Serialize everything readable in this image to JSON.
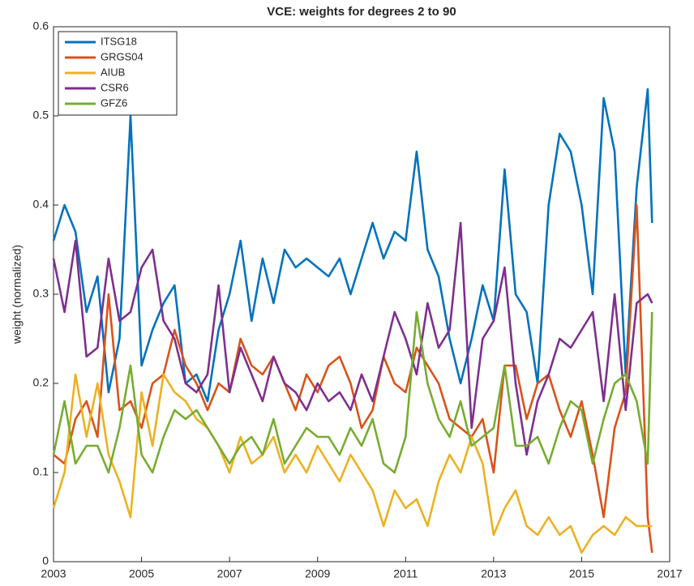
{
  "chart_data": {
    "type": "line",
    "title": "VCE: weights for degrees 2 to 90",
    "y_label": "weight (normalized)",
    "x": [
      2003,
      2003.25,
      2003.5,
      2003.75,
      2004,
      2004.25,
      2004.5,
      2004.75,
      2005,
      2005.25,
      2005.5,
      2005.75,
      2006,
      2006.25,
      2006.5,
      2006.75,
      2007,
      2007.25,
      2007.5,
      2007.75,
      2008,
      2008.25,
      2008.5,
      2008.75,
      2009,
      2009.25,
      2009.5,
      2009.75,
      2010,
      2010.25,
      2010.5,
      2010.75,
      2011,
      2011.25,
      2011.5,
      2011.75,
      2012,
      2012.25,
      2012.5,
      2012.75,
      2013,
      2013.25,
      2013.5,
      2013.75,
      2014,
      2014.25,
      2014.5,
      2014.75,
      2015,
      2015.25,
      2015.5,
      2015.75,
      2016,
      2016.25,
      2016.5,
      2016.6
    ],
    "series": [
      {
        "name": "ITSG18",
        "color": "#0072BD",
        "values": [
          0.36,
          0.4,
          0.37,
          0.28,
          0.32,
          0.19,
          0.25,
          0.5,
          0.22,
          0.26,
          0.29,
          0.31,
          0.2,
          0.21,
          0.18,
          0.26,
          0.3,
          0.36,
          0.27,
          0.34,
          0.29,
          0.35,
          0.33,
          0.34,
          0.33,
          0.32,
          0.34,
          0.3,
          0.34,
          0.38,
          0.34,
          0.37,
          0.36,
          0.46,
          0.35,
          0.32,
          0.25,
          0.2,
          0.25,
          0.31,
          0.27,
          0.44,
          0.3,
          0.28,
          0.2,
          0.4,
          0.48,
          0.46,
          0.4,
          0.3,
          0.52,
          0.46,
          0.21,
          0.42,
          0.53,
          0.38
        ]
      },
      {
        "name": "GRGS04",
        "color": "#D95319",
        "values": [
          0.12,
          0.11,
          0.16,
          0.18,
          0.14,
          0.3,
          0.17,
          0.18,
          0.15,
          0.2,
          0.21,
          0.26,
          0.22,
          0.2,
          0.17,
          0.2,
          0.19,
          0.25,
          0.22,
          0.21,
          0.23,
          0.2,
          0.17,
          0.21,
          0.19,
          0.22,
          0.23,
          0.2,
          0.15,
          0.17,
          0.23,
          0.2,
          0.19,
          0.24,
          0.22,
          0.2,
          0.16,
          0.15,
          0.14,
          0.16,
          0.1,
          0.22,
          0.22,
          0.16,
          0.2,
          0.21,
          0.17,
          0.14,
          0.18,
          0.12,
          0.05,
          0.15,
          0.19,
          0.4,
          0.05,
          0.01
        ]
      },
      {
        "name": "AIUB",
        "color": "#EDB120",
        "values": [
          0.06,
          0.1,
          0.21,
          0.14,
          0.2,
          0.12,
          0.09,
          0.05,
          0.19,
          0.13,
          0.21,
          0.19,
          0.18,
          0.16,
          0.15,
          0.13,
          0.1,
          0.14,
          0.11,
          0.12,
          0.14,
          0.1,
          0.12,
          0.1,
          0.13,
          0.11,
          0.09,
          0.12,
          0.1,
          0.08,
          0.04,
          0.08,
          0.06,
          0.07,
          0.04,
          0.09,
          0.12,
          0.1,
          0.14,
          0.11,
          0.03,
          0.06,
          0.08,
          0.04,
          0.03,
          0.05,
          0.03,
          0.04,
          0.01,
          0.03,
          0.04,
          0.03,
          0.05,
          0.04,
          0.04,
          0.04
        ]
      },
      {
        "name": "CSR6",
        "color": "#7E2F8E",
        "values": [
          0.34,
          0.28,
          0.36,
          0.23,
          0.24,
          0.34,
          0.27,
          0.28,
          0.33,
          0.35,
          0.27,
          0.25,
          0.2,
          0.19,
          0.21,
          0.31,
          0.19,
          0.24,
          0.21,
          0.18,
          0.23,
          0.2,
          0.19,
          0.17,
          0.2,
          0.18,
          0.19,
          0.17,
          0.21,
          0.18,
          0.23,
          0.28,
          0.25,
          0.21,
          0.29,
          0.24,
          0.26,
          0.38,
          0.15,
          0.25,
          0.27,
          0.33,
          0.2,
          0.12,
          0.18,
          0.21,
          0.25,
          0.24,
          0.26,
          0.28,
          0.18,
          0.3,
          0.17,
          0.29,
          0.3,
          0.29
        ]
      },
      {
        "name": "GFZ6",
        "color": "#77AC30",
        "values": [
          0.12,
          0.18,
          0.11,
          0.13,
          0.13,
          0.1,
          0.15,
          0.22,
          0.12,
          0.1,
          0.14,
          0.17,
          0.16,
          0.17,
          0.15,
          0.13,
          0.11,
          0.13,
          0.14,
          0.12,
          0.16,
          0.11,
          0.13,
          0.15,
          0.14,
          0.14,
          0.12,
          0.15,
          0.13,
          0.16,
          0.11,
          0.1,
          0.14,
          0.28,
          0.2,
          0.16,
          0.14,
          0.18,
          0.13,
          0.14,
          0.15,
          0.22,
          0.13,
          0.13,
          0.14,
          0.11,
          0.15,
          0.18,
          0.17,
          0.11,
          0.16,
          0.2,
          0.21,
          0.18,
          0.11,
          0.28
        ]
      }
    ],
    "xlim": [
      2003,
      2017
    ],
    "xticks": [
      2003,
      2005,
      2007,
      2009,
      2011,
      2013,
      2015,
      2017
    ],
    "ylim": [
      0,
      0.6
    ],
    "yticks": [
      0,
      0.1,
      0.2,
      0.3,
      0.4,
      0.5,
      0.6
    ],
    "legend": "upper-left",
    "grid": false
  }
}
